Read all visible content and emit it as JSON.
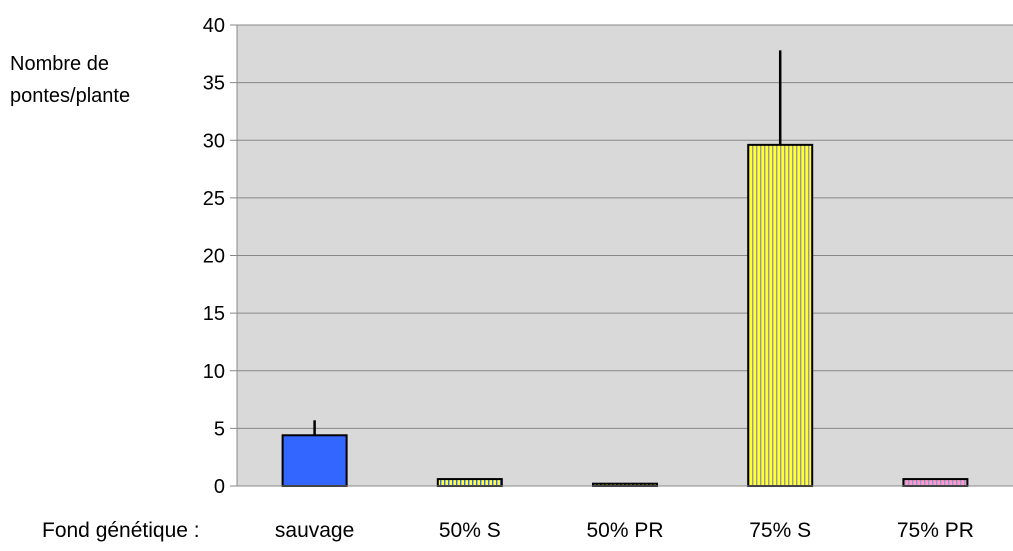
{
  "chart_data": {
    "type": "bar",
    "title": "",
    "ylabel_lines": [
      "Nombre de",
      "pontes/plante"
    ],
    "xlabel": "Fond génétique :",
    "categories": [
      "sauvage",
      "50% S",
      "50% PR",
      "75% S",
      "75% PR"
    ],
    "values": [
      4.4,
      0.6,
      0.2,
      29.6,
      0.6
    ],
    "error_plus": [
      1.3,
      0,
      0,
      8.2,
      0
    ],
    "ylim": [
      0,
      40
    ],
    "yticks": [
      0,
      5,
      10,
      15,
      20,
      25,
      30,
      35,
      40
    ],
    "grid": true,
    "legend": "none",
    "colors": {
      "plot_background": "#d9d9d9",
      "gridline": "#888888",
      "bar_fills": [
        "#3366ff",
        "#ffff33",
        "#ffff33",
        "#ffff33",
        "#ff99cc"
      ],
      "stripe_colors": [
        "none",
        "#3366ff",
        "#000000",
        "#999999",
        "#9999cc"
      ]
    }
  }
}
